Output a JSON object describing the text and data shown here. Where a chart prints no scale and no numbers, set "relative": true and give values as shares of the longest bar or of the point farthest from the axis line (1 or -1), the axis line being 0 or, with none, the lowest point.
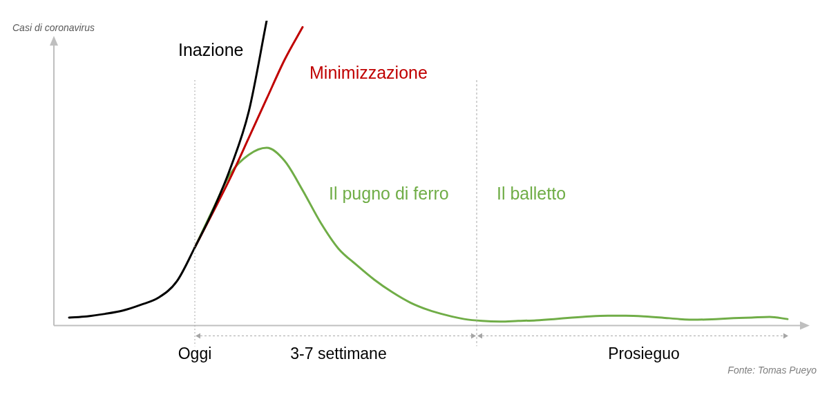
{
  "chart_data": {
    "type": "line",
    "relative": true,
    "ylabel": "Casi di coronavirus",
    "grid": false,
    "legend": false,
    "tick_labels": "x",
    "marker": "none",
    "line_style": "solid",
    "categories": [
      null,
      null,
      null,
      null,
      null,
      null,
      null,
      null,
      "Oggi",
      null,
      null,
      null,
      null,
      null,
      null,
      null,
      "3-7 settimane",
      null,
      null,
      null,
      null,
      null,
      null,
      null,
      null,
      null,
      null,
      null,
      null,
      null,
      null,
      null,
      null,
      "Prosieguo",
      null,
      null,
      null,
      null,
      null,
      null,
      null,
      null,
      null
    ],
    "series": [
      {
        "name": "Inazione",
        "color": "#000000",
        "values": [
          null,
          0.026,
          0.03,
          0.038,
          0.049,
          0.068,
          0.092,
          0.145,
          0.256,
          0.376,
          0.519,
          0.701,
          1,
          null,
          null,
          null,
          null,
          null,
          null,
          null,
          null,
          null,
          null,
          null,
          null,
          null,
          null,
          null,
          null,
          null,
          null,
          null,
          null,
          null,
          null,
          null,
          null,
          null,
          null,
          null,
          null,
          null,
          null
        ]
      },
      {
        "name": "Minimizzazione",
        "color": "#c00000",
        "values": [
          null,
          null,
          null,
          null,
          null,
          null,
          null,
          null,
          0.256,
          0.37,
          0.487,
          0.615,
          0.744,
          0.872,
          0.979,
          null,
          null,
          null,
          null,
          null,
          null,
          null,
          null,
          null,
          null,
          null,
          null,
          null,
          null,
          null,
          null,
          null,
          null,
          null,
          null,
          null,
          null,
          null,
          null,
          null,
          null,
          null,
          null
        ]
      },
      {
        "color": "#70ad47",
        "values": [
          null,
          null,
          null,
          null,
          null,
          null,
          null,
          null,
          0.256,
          0.38,
          0.5,
          0.56,
          0.583,
          0.54,
          0.444,
          0.338,
          0.252,
          0.199,
          0.15,
          0.109,
          0.075,
          0.051,
          0.034,
          0.021,
          0.015,
          0.013,
          0.015,
          0.017,
          0.021,
          0.026,
          0.03,
          0.032,
          0.032,
          0.03,
          0.026,
          0.021,
          0.019,
          0.021,
          0.024,
          0.026,
          0.028,
          0.021,
          null
        ]
      }
    ],
    "ref_lines": [
      {
        "axis": "x",
        "value": "Oggi",
        "color": "#a6a6a6",
        "line_style": "dotted"
      }
    ],
    "annotations": [
      "Il pugno di ferro",
      "Il balletto",
      "Fonte: Tomas Pueyo"
    ]
  }
}
